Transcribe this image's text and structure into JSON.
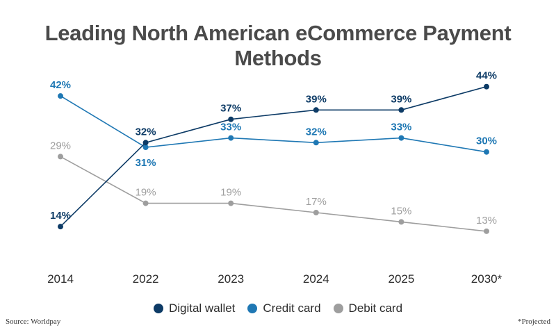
{
  "title": "Leading North American eCommerce Payment Methods",
  "source": "Source: Worldpay",
  "note": "*Projected",
  "colors": {
    "digital_wallet": "#0d3b66",
    "credit_card": "#1f78b4",
    "debit_card": "#9e9e9e"
  },
  "chart_data": {
    "type": "line",
    "title": "Leading North American eCommerce Payment Methods",
    "x": [
      "2014",
      "2022",
      "2023",
      "2024",
      "2025",
      "2030*"
    ],
    "ylim": [
      10,
      45
    ],
    "grid": false,
    "legend_position": "bottom",
    "series": [
      {
        "name": "Digital wallet",
        "key": "digital_wallet",
        "values": [
          14,
          32,
          37,
          39,
          39,
          44
        ],
        "labels": [
          "14%",
          "32%",
          "37%",
          "39%",
          "39%",
          "44%"
        ]
      },
      {
        "name": "Credit card",
        "key": "credit_card",
        "values": [
          42,
          31,
          33,
          32,
          33,
          30
        ],
        "labels": [
          "42%",
          "31%",
          "33%",
          "32%",
          "33%",
          "30%"
        ]
      },
      {
        "name": "Debit card",
        "key": "debit_card",
        "values": [
          29,
          19,
          19,
          17,
          15,
          13
        ],
        "labels": [
          "29%",
          "19%",
          "19%",
          "17%",
          "15%",
          "13%"
        ]
      }
    ]
  }
}
